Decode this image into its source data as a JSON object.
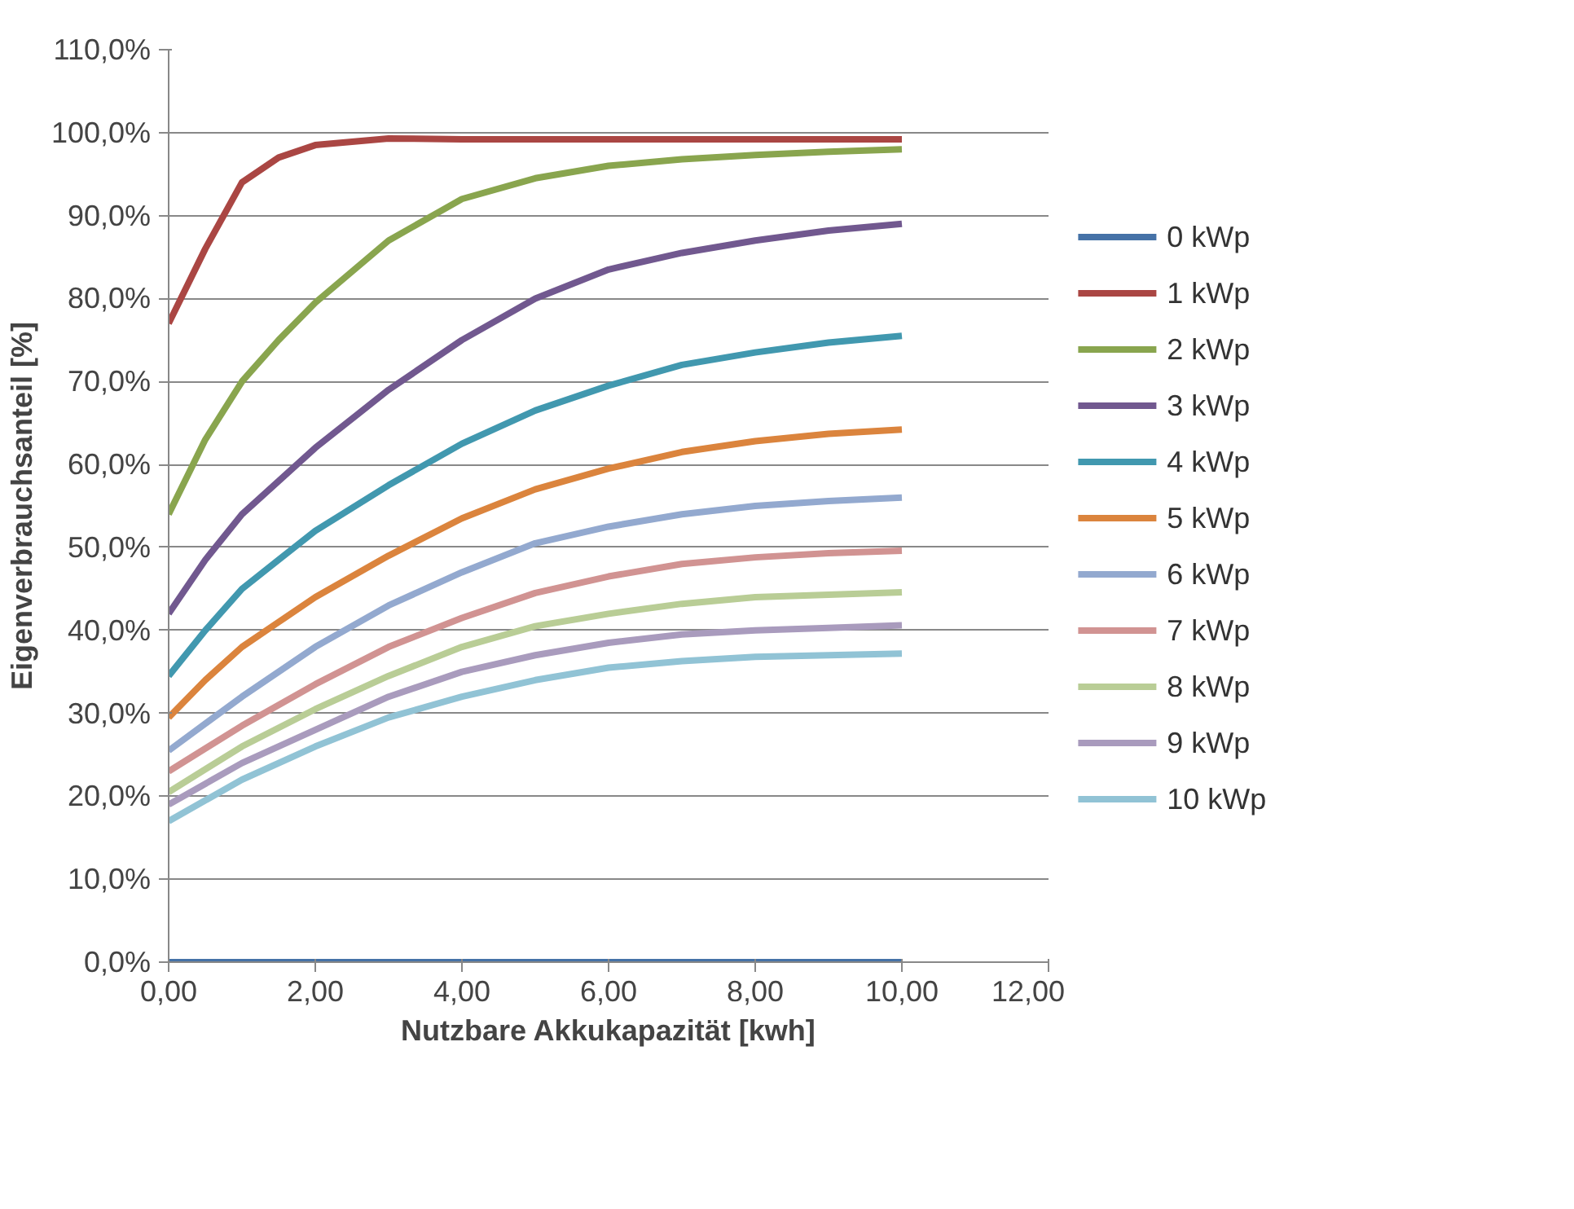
{
  "chart_data": {
    "type": "line",
    "xlabel": "Nutzbare Akkukapazität [kwh]",
    "ylabel": "Eigenverbrauchsanteil [%]",
    "xlim": [
      0,
      12
    ],
    "ylim": [
      0,
      110
    ],
    "xticks": [
      {
        "value": 0,
        "label": "0,00"
      },
      {
        "value": 2,
        "label": "2,00"
      },
      {
        "value": 4,
        "label": "4,00"
      },
      {
        "value": 6,
        "label": "6,00"
      },
      {
        "value": 8,
        "label": "8,00"
      },
      {
        "value": 10,
        "label": "10,00"
      },
      {
        "value": 12,
        "label": "12,00"
      }
    ],
    "yticks": [
      {
        "value": 0,
        "label": "0,0%"
      },
      {
        "value": 10,
        "label": "10,0%"
      },
      {
        "value": 20,
        "label": "20,0%"
      },
      {
        "value": 30,
        "label": "30,0%"
      },
      {
        "value": 40,
        "label": "40,0%"
      },
      {
        "value": 50,
        "label": "50,0%"
      },
      {
        "value": 60,
        "label": "60,0%"
      },
      {
        "value": 70,
        "label": "70,0%"
      },
      {
        "value": 80,
        "label": "80,0%"
      },
      {
        "value": 90,
        "label": "90,0%"
      },
      {
        "value": 100,
        "label": "100,0%"
      },
      {
        "value": 110,
        "label": "110,0%"
      }
    ],
    "grid": "y",
    "legend": "right",
    "marker": "none",
    "line_style": "solid",
    "series": [
      {
        "name": "0 kWp",
        "color": "#4572a7",
        "x": [
          0,
          2,
          4,
          6,
          8,
          10
        ],
        "values": [
          0,
          0,
          0,
          0,
          0,
          0
        ]
      },
      {
        "name": "1 kWp",
        "color": "#aa4643",
        "x": [
          0,
          0.5,
          1,
          1.5,
          2,
          3,
          4,
          5,
          6,
          7,
          8,
          9,
          10
        ],
        "values": [
          77,
          86,
          94,
          97,
          98.5,
          99.3,
          99.2,
          99.2,
          99.2,
          99.2,
          99.2,
          99.2,
          99.2
        ]
      },
      {
        "name": "2 kWp",
        "color": "#89a54e",
        "x": [
          0,
          0.5,
          1,
          1.5,
          2,
          3,
          4,
          5,
          6,
          7,
          8,
          9,
          10
        ],
        "values": [
          54,
          63,
          70,
          75,
          79.5,
          87,
          92,
          94.5,
          96,
          96.8,
          97.3,
          97.7,
          98
        ]
      },
      {
        "name": "3 kWp",
        "color": "#71588f",
        "x": [
          0,
          0.5,
          1,
          1.5,
          2,
          3,
          4,
          5,
          6,
          7,
          8,
          9,
          10
        ],
        "values": [
          42,
          48.5,
          54,
          58,
          62,
          69,
          75,
          80,
          83.5,
          85.5,
          87,
          88.2,
          89
        ]
      },
      {
        "name": "4 kWp",
        "color": "#4198af",
        "x": [
          0,
          0.5,
          1,
          1.5,
          2,
          3,
          4,
          5,
          6,
          7,
          8,
          9,
          10
        ],
        "values": [
          34.5,
          40,
          45,
          48.5,
          52,
          57.5,
          62.5,
          66.5,
          69.5,
          72,
          73.5,
          74.7,
          75.5
        ]
      },
      {
        "name": "5 kWp",
        "color": "#db843d",
        "x": [
          0,
          0.5,
          1,
          1.5,
          2,
          3,
          4,
          5,
          6,
          7,
          8,
          9,
          10
        ],
        "values": [
          29.5,
          34,
          38,
          41,
          44,
          49,
          53.5,
          57,
          59.5,
          61.5,
          62.8,
          63.7,
          64.2
        ]
      },
      {
        "name": "6 kWp",
        "color": "#93a9cf",
        "x": [
          0,
          1,
          2,
          3,
          4,
          5,
          6,
          7,
          8,
          9,
          10
        ],
        "values": [
          25.5,
          32,
          38,
          43,
          47,
          50.5,
          52.5,
          54,
          55,
          55.6,
          56
        ]
      },
      {
        "name": "7 kWp",
        "color": "#d19392",
        "x": [
          0,
          1,
          2,
          3,
          4,
          5,
          6,
          7,
          8,
          9,
          10
        ],
        "values": [
          23,
          28.5,
          33.5,
          38,
          41.5,
          44.5,
          46.5,
          48,
          48.8,
          49.3,
          49.6
        ]
      },
      {
        "name": "8 kWp",
        "color": "#b9cd96",
        "x": [
          0,
          1,
          2,
          3,
          4,
          5,
          6,
          7,
          8,
          9,
          10
        ],
        "values": [
          20.5,
          26,
          30.5,
          34.5,
          38,
          40.5,
          42,
          43.2,
          44,
          44.3,
          44.6
        ]
      },
      {
        "name": "9 kWp",
        "color": "#a99bbd",
        "x": [
          0,
          1,
          2,
          3,
          4,
          5,
          6,
          7,
          8,
          9,
          10
        ],
        "values": [
          19,
          24,
          28,
          32,
          35,
          37,
          38.5,
          39.5,
          40,
          40.3,
          40.6
        ]
      },
      {
        "name": "10 kWp",
        "color": "#91c3d5",
        "x": [
          0,
          1,
          2,
          3,
          4,
          5,
          6,
          7,
          8,
          9,
          10
        ],
        "values": [
          17,
          22,
          26,
          29.5,
          32,
          34,
          35.5,
          36.3,
          36.8,
          37,
          37.2
        ]
      }
    ]
  }
}
